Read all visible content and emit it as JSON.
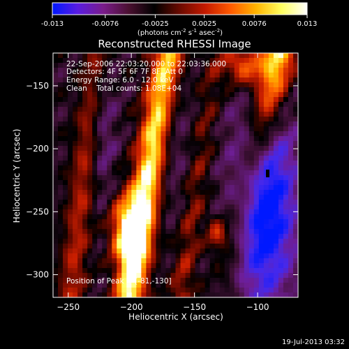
{
  "colorbar": {
    "ticks": [
      "-0.013",
      "-0.0076",
      "-0.0025",
      "0.0025",
      "0.0076",
      "0.013"
    ],
    "tick_values": [
      -0.013,
      -0.0076,
      -0.0025,
      0.0025,
      0.0076,
      0.013
    ],
    "range": [
      -0.013,
      0.013
    ],
    "unit_label_parts": [
      "(photons cm",
      "-2",
      " s",
      "-1",
      " asec",
      "-2",
      ")"
    ],
    "colors": [
      "#0018ff",
      "#5a1ce0",
      "#7a1c8a",
      "#4a1030",
      "#000000",
      "#6a0a00",
      "#c41a00",
      "#ff5a00",
      "#ffb400",
      "#ffff60",
      "#ffffff"
    ]
  },
  "chart_data": {
    "type": "heatmap",
    "title": "Reconstructed RHESSI Image",
    "xlabel": "Heliocentric X (arcsec)",
    "ylabel": "Heliocentric Y (arcsec)",
    "xlim": [
      -262,
      -68
    ],
    "ylim": [
      -318,
      -124
    ],
    "xticks": [
      -250,
      -200,
      -150,
      -100
    ],
    "yticks": [
      -300,
      -250,
      -200,
      -150
    ],
    "peak_position": [
      -81,
      -130
    ],
    "annotations": [
      "22-Sep-2006 22:03:20.000 to 22:03:36.000",
      "Detectors: 4F 5F 6F 7F 8F, Att 0",
      "Energy Range: 6.0 - 12.0 keV",
      "Clean    Total counts: 1.08E+04"
    ],
    "peak_label": "Position of Peak = [-81,-130]",
    "colors": {
      "axis": "#ffffff",
      "background": "#000000"
    }
  },
  "footer": {
    "date": "19-Jul-2013 03:32"
  }
}
